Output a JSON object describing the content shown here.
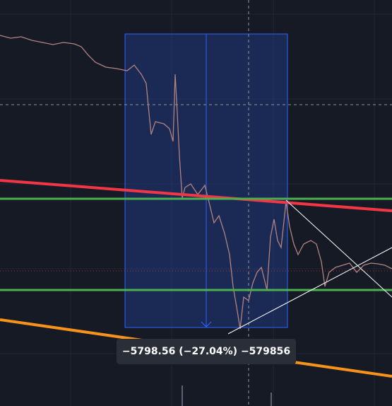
{
  "measure": {
    "label": "−5798.56 (−27.04%) −579856"
  }
}
